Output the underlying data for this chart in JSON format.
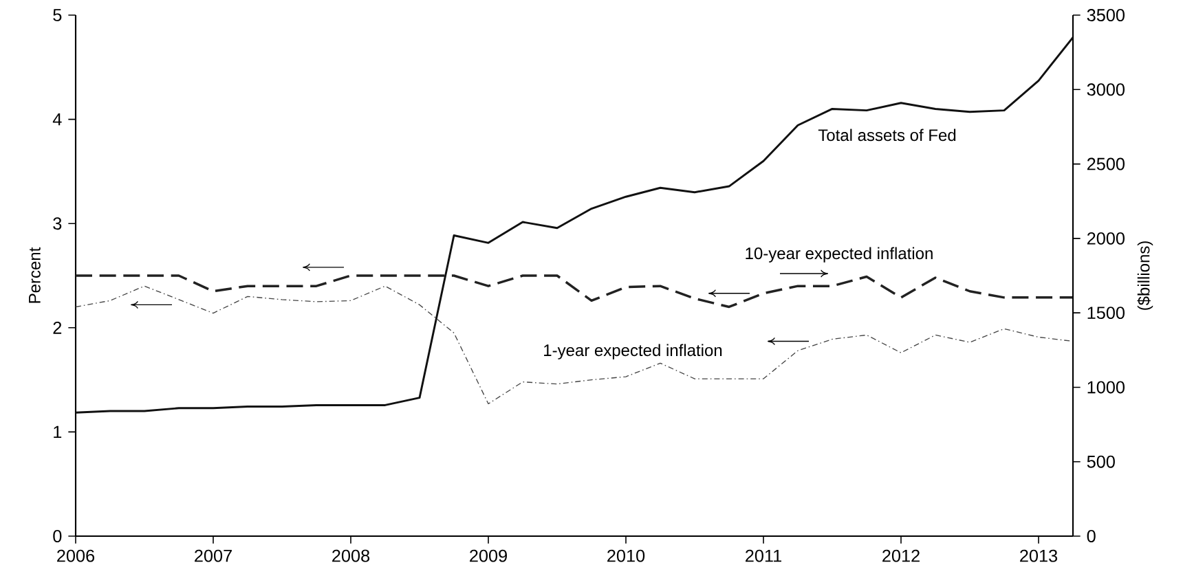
{
  "chart_data": {
    "type": "line",
    "ylabel": "Percent",
    "y2label": "($billions)",
    "x": [
      2006,
      2006.25,
      2006.5,
      2006.75,
      2007,
      2007.25,
      2007.5,
      2007.75,
      2008,
      2008.25,
      2008.5,
      2008.75,
      2009,
      2009.25,
      2009.5,
      2009.75,
      2010,
      2010.25,
      2010.5,
      2010.75,
      2011,
      2011.25,
      2011.5,
      2011.75,
      2012,
      2012.25,
      2012.5,
      2012.75,
      2013,
      2013.25
    ],
    "series": [
      {
        "name": "Total assets of Fed",
        "color": "#111111",
        "axis": "y2",
        "line_style": "solid",
        "values": [
          830,
          840,
          840,
          860,
          860,
          870,
          870,
          880,
          880,
          880,
          930,
          2020,
          1970,
          2110,
          2070,
          2200,
          2280,
          2340,
          2310,
          2350,
          2520,
          2760,
          2870,
          2860,
          2910,
          2870,
          2850,
          2860,
          3060,
          3350
        ]
      },
      {
        "name": "10-year expected inflation",
        "color": "#222222",
        "axis": "y",
        "line_style": "dashed",
        "values": [
          2.5,
          2.5,
          2.5,
          2.5,
          2.35,
          2.4,
          2.4,
          2.4,
          2.5,
          2.5,
          2.5,
          2.5,
          2.4,
          2.5,
          2.5,
          2.26,
          2.39,
          2.4,
          2.28,
          2.2,
          2.33,
          2.4,
          2.4,
          2.49,
          2.29,
          2.48,
          2.35,
          2.29,
          2.29,
          2.29
        ]
      },
      {
        "name": "1-year expected inflation",
        "color": "#444444",
        "axis": "y",
        "line_style": "dotted",
        "values": [
          2.2,
          2.26,
          2.4,
          2.27,
          2.14,
          2.3,
          2.27,
          2.25,
          2.26,
          2.4,
          2.22,
          1.95,
          1.27,
          1.48,
          1.46,
          1.5,
          1.53,
          1.66,
          1.51,
          1.51,
          1.51,
          1.78,
          1.89,
          1.93,
          1.76,
          1.93,
          1.86,
          1.99,
          1.91,
          1.87
        ]
      }
    ],
    "xlim": [
      2006,
      2013.25
    ],
    "xticks": [
      2006,
      2007,
      2008,
      2009,
      2010,
      2011,
      2012,
      2013
    ],
    "ylim": [
      0,
      5
    ],
    "yticks": [
      0,
      1,
      2,
      3,
      4,
      5
    ],
    "y2lim": [
      0,
      3500
    ],
    "y2ticks": [
      0,
      500,
      1000,
      1500,
      2000,
      2500,
      3000,
      3500
    ],
    "grid": false,
    "marker": "none"
  }
}
